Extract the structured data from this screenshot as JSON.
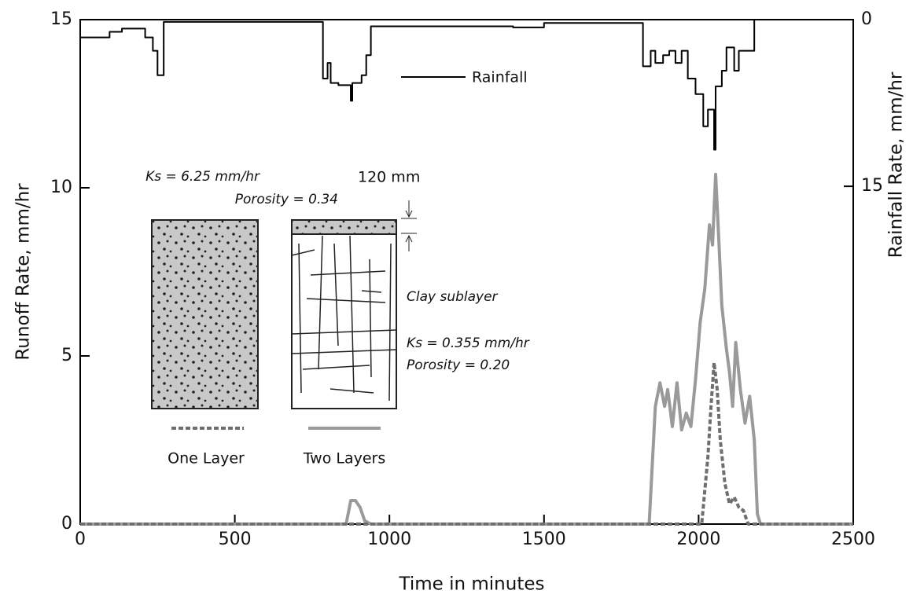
{
  "chart_data": {
    "type": "line",
    "xlabel": "Time in minutes",
    "ylabel": "Runoff Rate, mm/hr",
    "y2label": "Rainfall Rate, mm/hr",
    "xlim": [
      0,
      2500
    ],
    "xticks": [
      0,
      500,
      1000,
      1500,
      2000,
      2500
    ],
    "ylim": [
      0,
      15
    ],
    "yticks": [
      0,
      5,
      10,
      15
    ],
    "y2lim": [
      45.4,
      0
    ],
    "y2ticks": [
      0,
      15
    ],
    "series": [
      {
        "name": "Rainfall",
        "color": "#000000",
        "axis": "y2",
        "step": true,
        "x": [
          0,
          95,
          135,
          210,
          235,
          250,
          270,
          785,
          800,
          810,
          835,
          875,
          880,
          910,
          925,
          940,
          1400,
          1500,
          1820,
          1845,
          1860,
          1885,
          1905,
          1925,
          1945,
          1965,
          1990,
          2015,
          2030,
          2050,
          2055,
          2075,
          2090,
          2115,
          2130,
          2180,
          2500
        ],
        "values": [
          1.6,
          1.1,
          0.8,
          1.6,
          2.8,
          5.0,
          0.2,
          5.3,
          3.9,
          5.7,
          5.9,
          7.3,
          5.7,
          5.0,
          3.2,
          0.6,
          0.7,
          0.3,
          4.2,
          2.8,
          3.9,
          3.2,
          2.8,
          3.9,
          2.8,
          5.3,
          6.7,
          9.6,
          8.1,
          11.7,
          6.0,
          4.6,
          2.5,
          4.6,
          2.8,
          0,
          0
        ]
      },
      {
        "name": "Two Layers",
        "color": "#9a9a9a",
        "dash": false,
        "x": [
          0,
          860,
          875,
          890,
          905,
          920,
          940,
          1840,
          1860,
          1875,
          1890,
          1900,
          1915,
          1930,
          1945,
          1960,
          1975,
          1990,
          2005,
          2020,
          2035,
          2045,
          2055,
          2065,
          2075,
          2090,
          2100,
          2110,
          2120,
          2135,
          2150,
          2165,
          2180,
          2190,
          2200,
          2500
        ],
        "values": [
          0,
          0,
          0.7,
          0.7,
          0.5,
          0.1,
          0,
          0,
          3.5,
          4.2,
          3.5,
          4.0,
          2.9,
          4.2,
          2.8,
          3.3,
          2.9,
          4.3,
          6.0,
          7.0,
          8.9,
          8.3,
          10.4,
          8.5,
          6.5,
          5.2,
          4.5,
          3.5,
          5.4,
          4.0,
          3.0,
          3.8,
          2.5,
          0.3,
          0,
          0
        ]
      },
      {
        "name": "One Layer",
        "color": "#6e6e6e",
        "dash": true,
        "x": [
          0,
          2010,
          2020,
          2030,
          2040,
          2050,
          2060,
          2070,
          2085,
          2100,
          2115,
          2130,
          2145,
          2160,
          2500
        ],
        "values": [
          0,
          0,
          1.0,
          2.0,
          3.5,
          4.8,
          4.0,
          2.5,
          1.2,
          0.6,
          0.8,
          0.5,
          0.4,
          0,
          0
        ]
      }
    ],
    "annotations": {
      "top_ks": "Ks = 6.25 mm/hr",
      "top_porosity": "Porosity = 0.34",
      "thickness": "120 mm",
      "clay": "Clay sublayer",
      "clay_ks": "Ks = 0.355 mm/hr",
      "clay_porosity": "Porosity = 0.20"
    }
  }
}
